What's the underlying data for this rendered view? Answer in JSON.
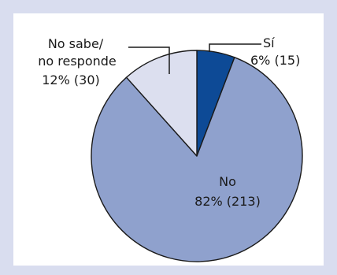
{
  "chart_data": {
    "type": "pie",
    "title": "",
    "slices": [
      {
        "label": "Sí",
        "percent_label": "6% (15)",
        "value": 15,
        "percent": 6,
        "color": "#0d4a96"
      },
      {
        "label": "No",
        "percent_label": "82% (213)",
        "value": 213,
        "percent": 82,
        "color": "#8fa1cd"
      },
      {
        "label_lines": [
          "No sabe/",
          "no responde"
        ],
        "percent_label": "12% (30)",
        "value": 30,
        "percent": 12,
        "color": "#dcdfef"
      }
    ],
    "start_angle_deg": 0,
    "direction": "clockwise",
    "legend": "none"
  }
}
